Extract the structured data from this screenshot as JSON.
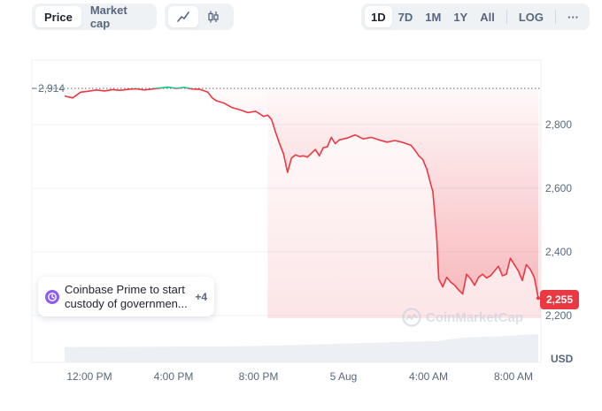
{
  "toolbar": {
    "chart_type_tabs": [
      {
        "label": "Price",
        "active": true
      },
      {
        "label": "Market cap",
        "active": false
      }
    ],
    "style_buttons": [
      {
        "icon": "line-chart-icon",
        "active": true
      },
      {
        "icon": "candlestick-icon",
        "active": false
      }
    ],
    "range_tabs": [
      {
        "label": "1D",
        "active": true
      },
      {
        "label": "7D",
        "active": false
      },
      {
        "label": "1M",
        "active": false
      },
      {
        "label": "1Y",
        "active": false
      },
      {
        "label": "All",
        "active": false
      }
    ],
    "log_label": "LOG",
    "more_label": "···"
  },
  "news": {
    "title_line1": "Coinbase Prime to start",
    "title_line2": "custody of governmen...",
    "count": "+4",
    "icon": "history-icon"
  },
  "watermark": "CoinMarketCap",
  "colors": {
    "down": "#ea3943",
    "up": "#16c784",
    "grid": "#eff2f5",
    "text": "#58667e"
  },
  "chart_data": {
    "type": "line",
    "currency": "USD",
    "x_labels": [
      "12:00 PM",
      "4:00 PM",
      "8:00 PM",
      "5 Aug",
      "4:00 AM",
      "8:00 AM"
    ],
    "y_ticks": [
      "2,800",
      "2,600",
      "2,400",
      "2,200"
    ],
    "ylim": [
      2150,
      2930
    ],
    "open_value": 2914,
    "open_label": "2,914",
    "current_value": 2255,
    "current_label": "2,255",
    "grid": true,
    "x_hours_range": [
      9.2,
      33.0
    ],
    "series": [
      {
        "hours": [
          9.2,
          9.6,
          10.0,
          10.4,
          10.8,
          11.2,
          11.6,
          12.0,
          12.4,
          12.8,
          13.2,
          13.6,
          14.0,
          14.4,
          14.8,
          15.2,
          15.6,
          16.0,
          16.4,
          16.6,
          16.8,
          17.2,
          17.6,
          18.0,
          18.4,
          18.8,
          19.2,
          19.4,
          19.6,
          19.8,
          20.0,
          20.2,
          20.4,
          20.6,
          20.8,
          21.0,
          21.2,
          21.4,
          21.6,
          21.8,
          22.0,
          22.2,
          22.4,
          22.6,
          22.8,
          23.0,
          23.4,
          23.8,
          24.2,
          24.6,
          25.0,
          25.4,
          25.8,
          26.2,
          26.6,
          26.8,
          27.0,
          27.2,
          27.4,
          27.6,
          27.7,
          27.8,
          27.9,
          28.0,
          28.2,
          28.4,
          28.6,
          28.8,
          29.0,
          29.2,
          29.4,
          29.6,
          29.8,
          30.0,
          30.2,
          30.4,
          30.6,
          30.8,
          31.0,
          31.2,
          31.4,
          31.6,
          31.8,
          32.0,
          32.2,
          32.4,
          32.6,
          32.8,
          33.0
        ],
        "values": [
          2890,
          2884,
          2902,
          2905,
          2909,
          2906,
          2910,
          2908,
          2911,
          2913,
          2909,
          2912,
          2915,
          2918,
          2914,
          2917,
          2912,
          2911,
          2902,
          2885,
          2876,
          2868,
          2854,
          2847,
          2838,
          2842,
          2826,
          2830,
          2816,
          2776,
          2740,
          2708,
          2650,
          2695,
          2705,
          2700,
          2702,
          2698,
          2710,
          2722,
          2702,
          2728,
          2730,
          2760,
          2740,
          2752,
          2758,
          2768,
          2755,
          2760,
          2752,
          2745,
          2750,
          2744,
          2735,
          2720,
          2702,
          2690,
          2660,
          2612,
          2590,
          2520,
          2440,
          2315,
          2290,
          2320,
          2305,
          2295,
          2280,
          2268,
          2330,
          2315,
          2295,
          2320,
          2330,
          2318,
          2325,
          2340,
          2355,
          2325,
          2330,
          2380,
          2360,
          2340,
          2310,
          2360,
          2345,
          2320,
          2255
        ]
      }
    ],
    "volume": {
      "hours": [
        9.2,
        12.0,
        15.0,
        18.0,
        20.0,
        22.0,
        24.0,
        26.0,
        28.0,
        29.0,
        30.0,
        31.0,
        32.0,
        33.0
      ],
      "values": [
        1.0,
        1.1,
        1.2,
        1.3,
        1.6,
        2.0,
        2.4,
        2.8,
        3.2,
        4.2,
        4.6,
        4.8,
        5.2,
        5.6
      ]
    }
  }
}
